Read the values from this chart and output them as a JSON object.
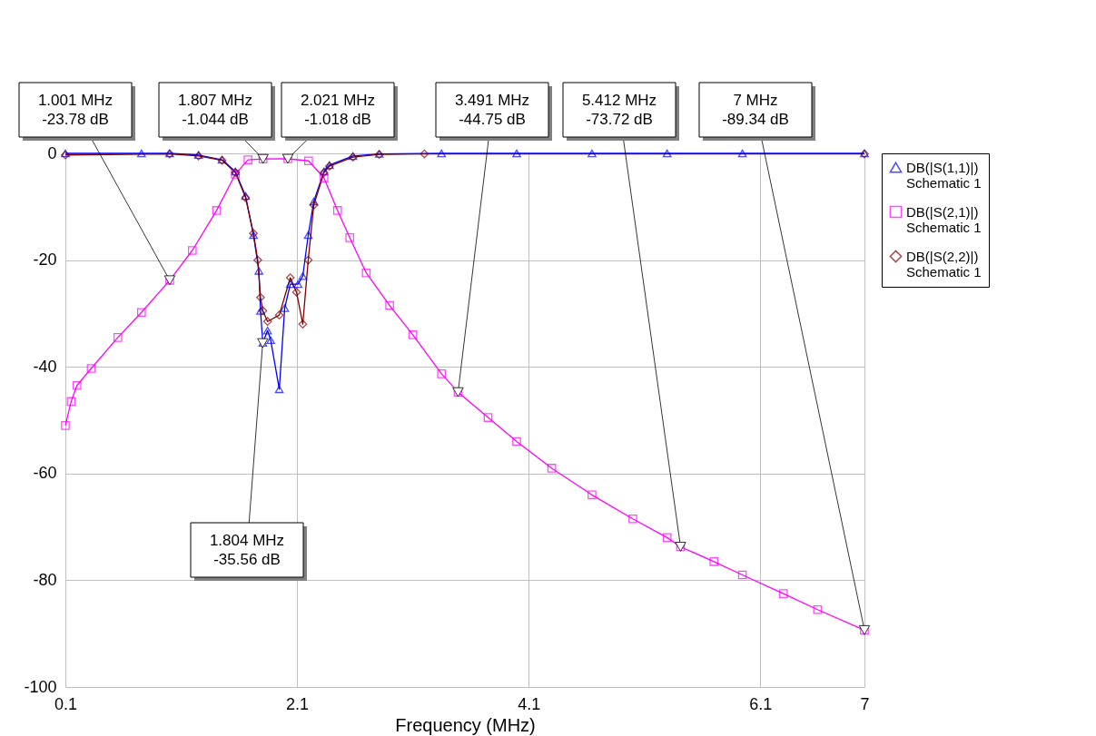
{
  "chart_data": {
    "type": "line",
    "xlabel": "Frequency (MHz)",
    "xlim": [
      0.1,
      7
    ],
    "xticks": [
      0.1,
      2.1,
      4.1,
      6.1,
      7
    ],
    "ylim": [
      -100,
      0
    ],
    "yticks": [
      -100,
      -80,
      -60,
      -40,
      -20,
      0
    ],
    "grid": true,
    "legend": "right",
    "series": [
      {
        "name": "DB(|S(1,1)|)\nSchematic 1",
        "color": "#0000ff",
        "marker": "triangle",
        "x": [
          0.1,
          0.757,
          1.0,
          1.25,
          1.453,
          1.568,
          1.656,
          1.724,
          1.771,
          1.785,
          1.805,
          1.846,
          1.873,
          1.947,
          1.994,
          2.042,
          2.109,
          2.15,
          2.197,
          2.245,
          2.333,
          2.38,
          2.583,
          2.81,
          3.348,
          3.997,
          4.647,
          5.296,
          5.946,
          7
        ],
        "values": [
          0,
          0,
          0,
          -0.3,
          -1.2,
          -3.4,
          -8,
          -15.3,
          -22,
          -29.5,
          -35.5,
          -33.2,
          -35,
          -44.2,
          -29,
          -24.5,
          -24.5,
          -23,
          -15.3,
          -9,
          -3.4,
          -2.2,
          -0.5,
          -0.1,
          0,
          0,
          0,
          0,
          0,
          0
        ]
      },
      {
        "name": "DB(|S(2,1)|)\nSchematic 1",
        "color": "#ff00ff",
        "marker": "square",
        "x": [
          0.1,
          0.15,
          0.2,
          0.323,
          0.553,
          0.757,
          1.001,
          1.196,
          1.406,
          1.568,
          1.677,
          1.807,
          2.021,
          2.2,
          2.333,
          2.45,
          2.556,
          2.698,
          2.9,
          3.1,
          3.348,
          3.491,
          3.75,
          3.997,
          4.3,
          4.647,
          5.0,
          5.296,
          5.412,
          5.7,
          5.946,
          6.3,
          6.595,
          7
        ],
        "values": [
          -51,
          -46.5,
          -43.5,
          -40.3,
          -34.5,
          -29.8,
          -23.78,
          -18.2,
          -10.7,
          -3.9,
          -1.2,
          -1.044,
          -1.018,
          -1.4,
          -4.6,
          -10.7,
          -15.8,
          -22.4,
          -28.5,
          -34,
          -41.3,
          -44.75,
          -49.5,
          -54,
          -59,
          -64,
          -68.5,
          -72,
          -73.72,
          -76.5,
          -79,
          -82.5,
          -85.5,
          -89.34
        ]
      },
      {
        "name": "DB(|S(2,2)|)\nSchematic 1",
        "color": "#800000",
        "marker": "diamond",
        "x": [
          0.1,
          1.0,
          1.25,
          1.453,
          1.568,
          1.656,
          1.724,
          1.761,
          1.785,
          1.805,
          1.846,
          1.947,
          2.042,
          2.096,
          2.15,
          2.197,
          2.245,
          2.333,
          2.38,
          2.583,
          2.81,
          3.2,
          7
        ],
        "values": [
          -0.3,
          -0.1,
          -0.5,
          -1.3,
          -3.6,
          -8.3,
          -15,
          -20,
          -27,
          -29.5,
          -31.5,
          -30.3,
          -23.3,
          -26,
          -32,
          -20,
          -9.7,
          -3.6,
          -2.4,
          -0.7,
          -0.2,
          -0.1,
          -0.1
        ]
      }
    ],
    "annotations": [
      {
        "text": "1.001 MHz\n-23.78 dB",
        "x": 1.001,
        "y": -23.78
      },
      {
        "text": "1.807 MHz\n-1.044 dB",
        "x": 1.807,
        "y": -1.044
      },
      {
        "text": "2.021 MHz\n-1.018 dB",
        "x": 2.021,
        "y": -1.018
      },
      {
        "text": "3.491 MHz\n-44.75 dB",
        "x": 3.491,
        "y": -44.75
      },
      {
        "text": "5.412 MHz\n-73.72 dB",
        "x": 5.412,
        "y": -73.72
      },
      {
        "text": "7 MHz\n-89.34 dB",
        "x": 7,
        "y": -89.34
      },
      {
        "text": "1.804 MHz\n-35.56 dB",
        "x": 1.804,
        "y": -35.56
      }
    ]
  }
}
